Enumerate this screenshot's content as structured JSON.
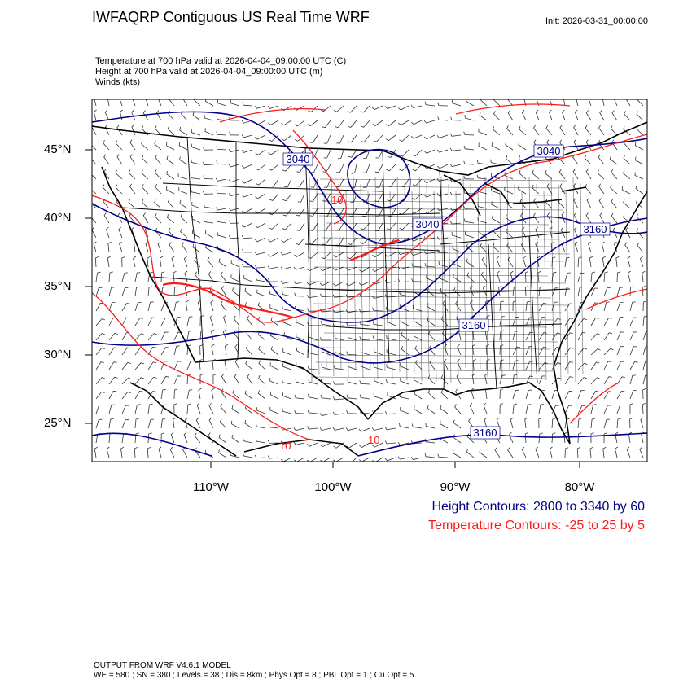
{
  "title": "IWFAQRP Contiguous US Real Time WRF",
  "init": "Init: 2026-03-31_00:00:00",
  "fields": [
    "Temperature at 700 hPa valid at 2026-04-04_09:00:00 UTC   (C)",
    "Height at 700 hPa valid at 2026-04-04_09:00:00 UTC   (m)",
    "Winds   (kts)"
  ],
  "lat_labels": [
    "45°N",
    "40°N",
    "35°N",
    "30°N",
    "25°N"
  ],
  "lon_labels": [
    "110°W",
    "100°W",
    "90°W",
    "80°W"
  ],
  "contour_labels": {
    "height": [
      "3040",
      "3040",
      "3040",
      "3160",
      "3160",
      "3160"
    ],
    "temperature": [
      "10",
      "10",
      "10"
    ]
  },
  "legend": {
    "height": "Height Contours: 2800 to 3340 by 60",
    "temperature": "Temperature Contours: -25 to 25 by 5"
  },
  "footer": {
    "line1": "OUTPUT FROM WRF V4.6.1 MODEL",
    "line2": "WE = 580 ; SN = 380 ; Levels = 38 ; Dis = 8km ; Phys Opt = 8 ; PBL Opt = 1 ; Cu Opt = 5"
  },
  "colors": {
    "height_contour": "#00008b",
    "temperature_contour": "#ff1a1a",
    "boundaries": "#000000"
  }
}
